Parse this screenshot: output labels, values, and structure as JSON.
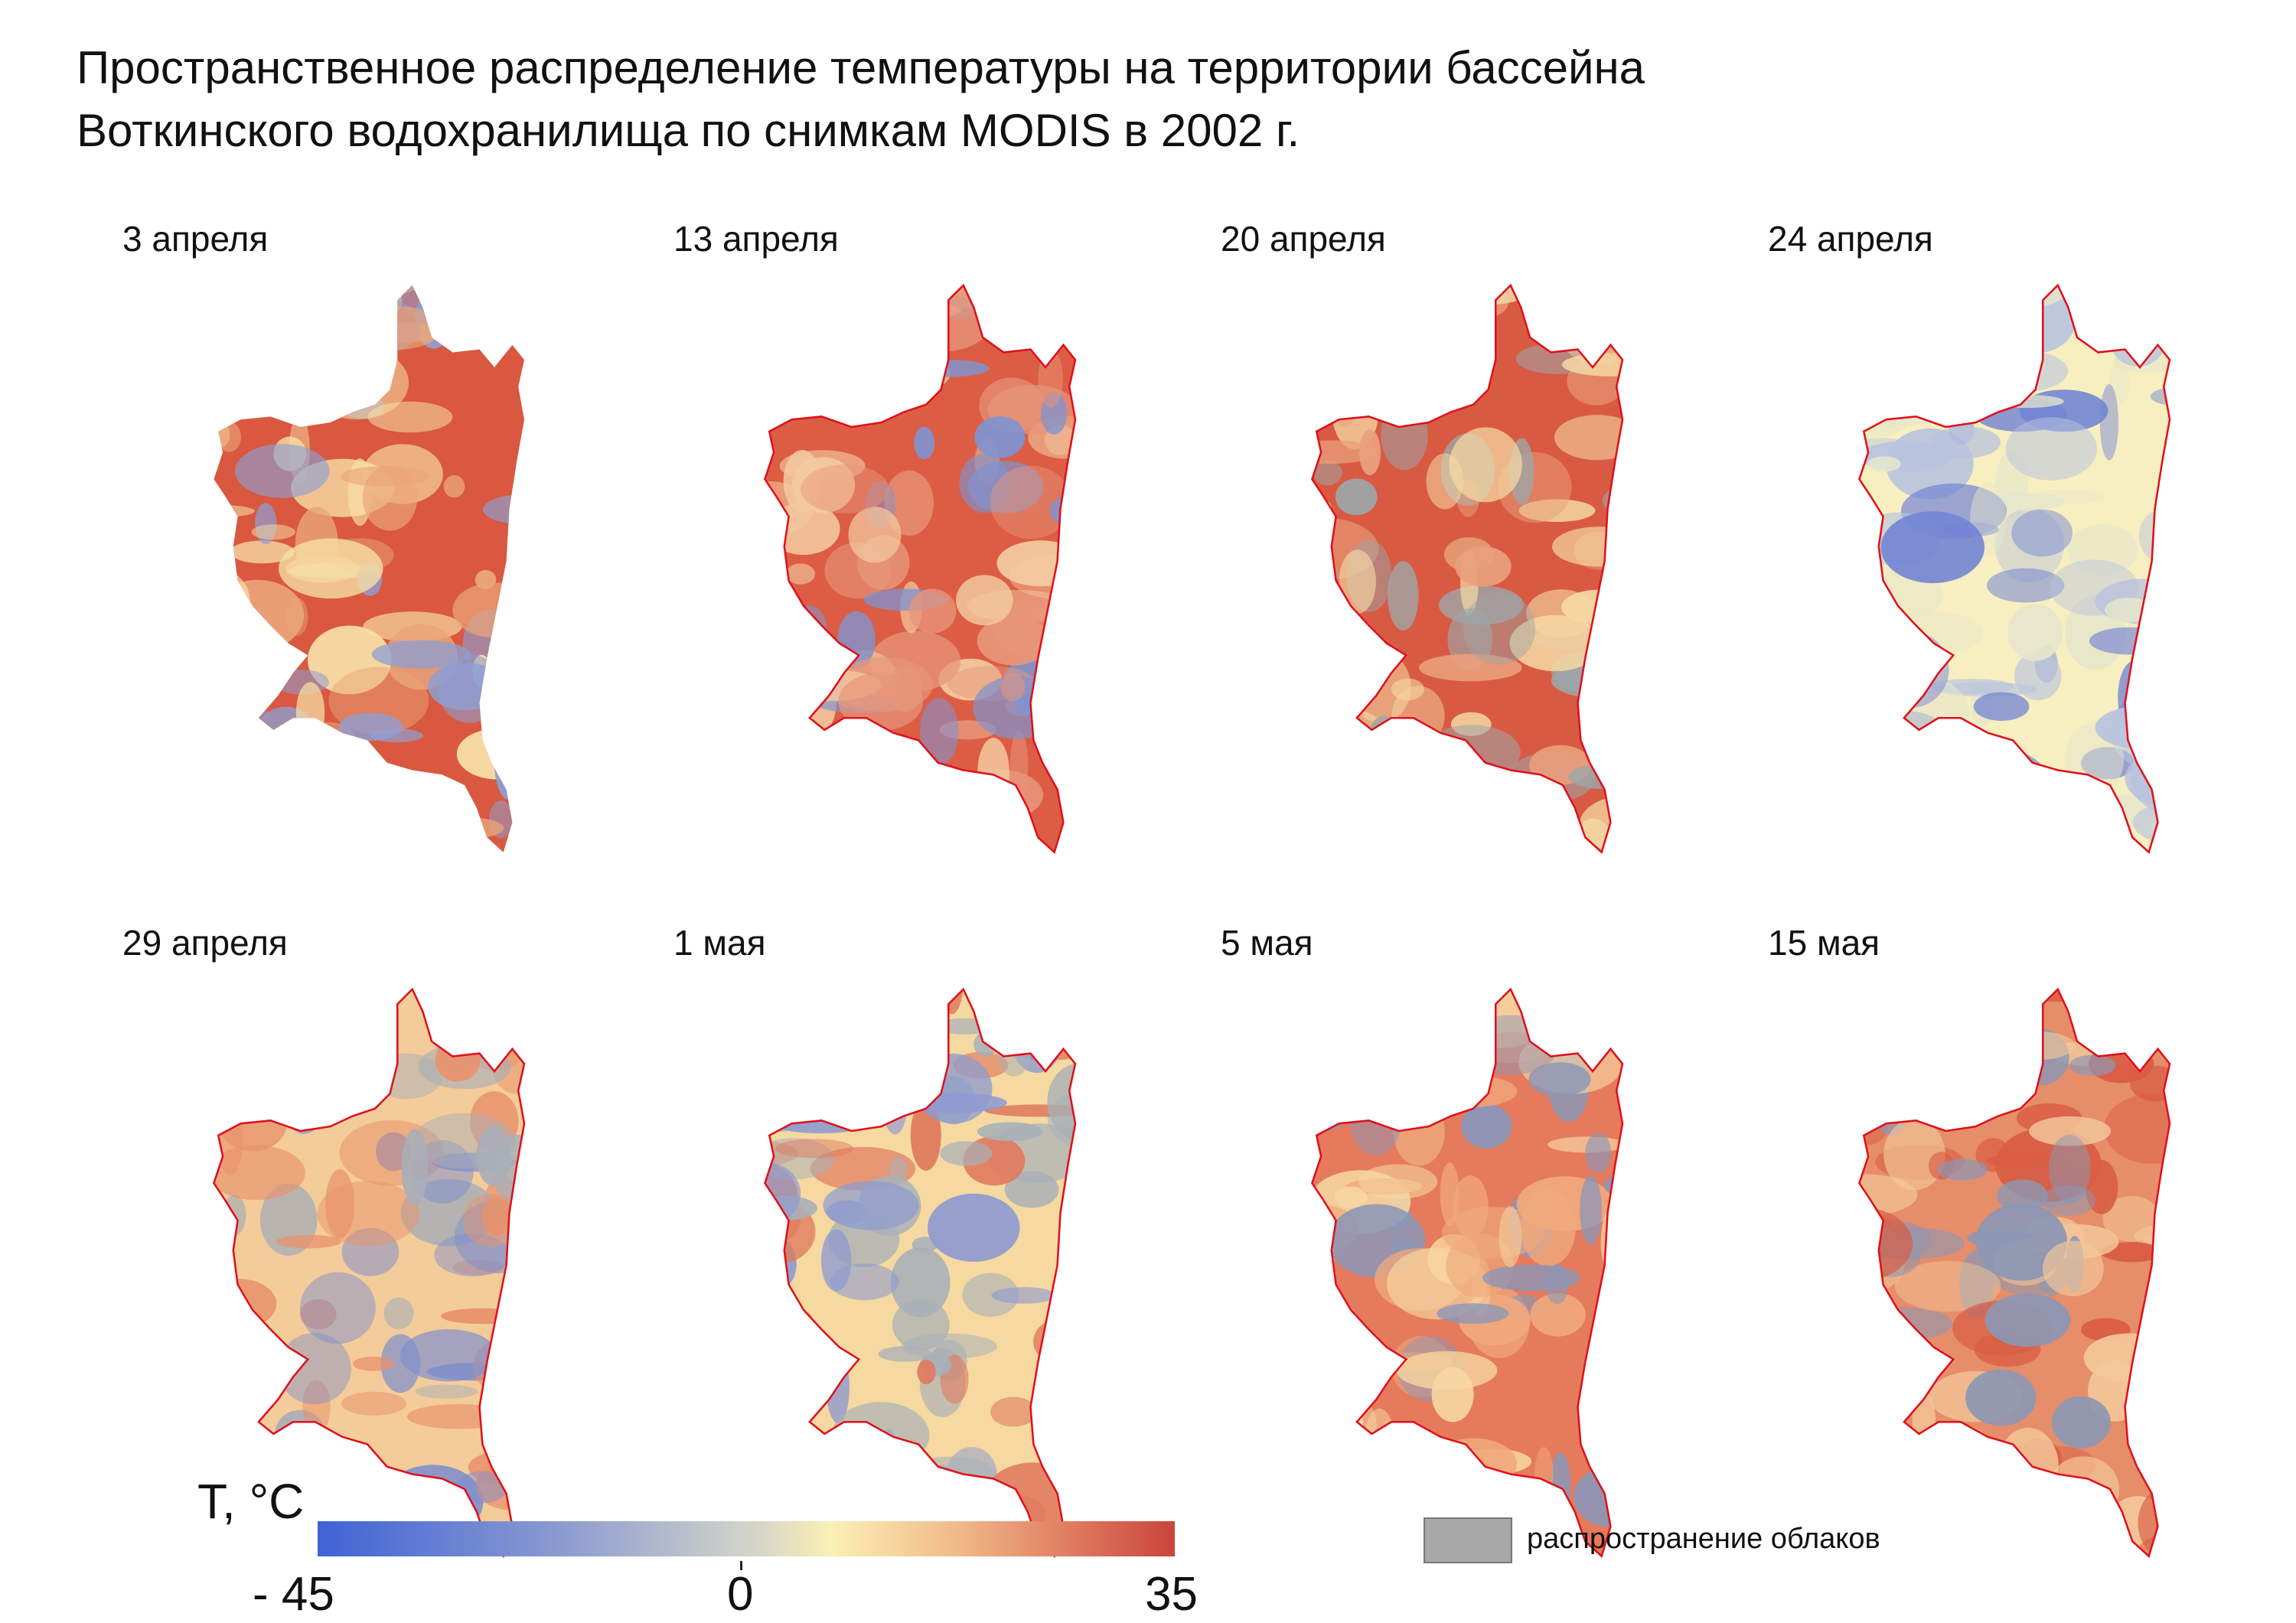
{
  "title": {
    "line1": "Пространственное распределение температуры на территории бассейна",
    "line2": "Воткинского водохранилища по снимкам MODIS в 2002 г."
  },
  "panels": [
    {
      "label": "3 апреля",
      "boundary_outline": false,
      "palette": [
        "#d9583f",
        "#eaa57a",
        "#f7e0a8",
        "#8e9fd3"
      ]
    },
    {
      "label": "13 апреля",
      "boundary_outline": true,
      "palette": [
        "#dc5d44",
        "#e7967a",
        "#f3caa0",
        "#7f93d0"
      ]
    },
    {
      "label": "20 апреля",
      "boundary_outline": true,
      "palette": [
        "#d95a42",
        "#e9a07c",
        "#f5d9a5",
        "#9ea6a8"
      ]
    },
    {
      "label": "24 апреля",
      "boundary_outline": true,
      "palette": [
        "#f7efbf",
        "#e6e6cc",
        "#b9c3de",
        "#7284d4"
      ]
    },
    {
      "label": "29 апреля",
      "boundary_outline": true,
      "palette": [
        "#f4cc9a",
        "#e8926c",
        "#a9aeb6",
        "#7f8fcc"
      ]
    },
    {
      "label": "1 мая",
      "boundary_outline": true,
      "palette": [
        "#f6d9a0",
        "#a8b0b8",
        "#8e9bcf",
        "#e07a5e"
      ]
    },
    {
      "label": "5 мая",
      "boundary_outline": true,
      "palette": [
        "#e57a5c",
        "#f0a97c",
        "#f7d6a2",
        "#8b96b8"
      ]
    },
    {
      "label": "15 мая",
      "boundary_outline": true,
      "palette": [
        "#e68d6a",
        "#d95d44",
        "#f3c79a",
        "#8c97b4"
      ]
    }
  ],
  "colors": {
    "boundary": "#e0101c",
    "cloud": "#a8a8a8"
  },
  "legend": {
    "title": "T, °C",
    "min_label": "- 45",
    "mid_label": "0",
    "max_label": "35",
    "min_value": -45,
    "mid_value": 0,
    "max_value": 35,
    "cloud_label": "распространение облаков"
  }
}
